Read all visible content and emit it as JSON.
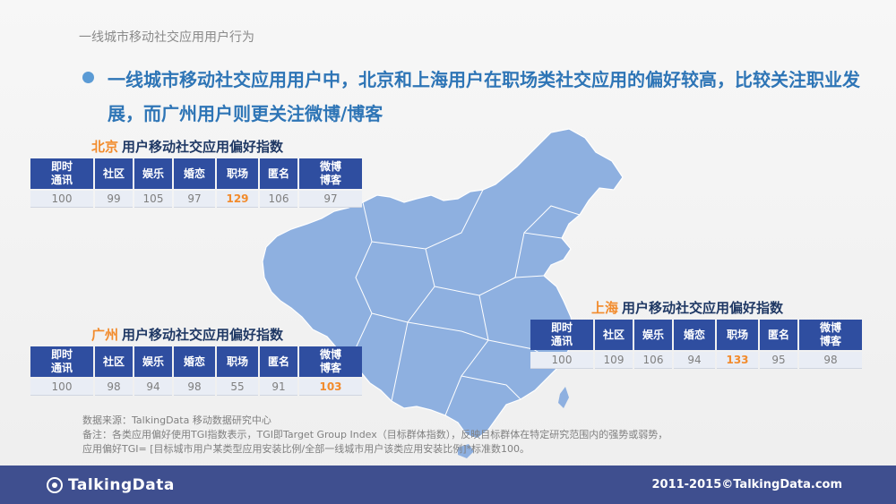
{
  "section_title": "一线城市移动社交应用用户行为",
  "headline": "一线城市移动社交应用用户中，北京和上海用户在职场类社交应用的偏好较高，比较关注职业发展，而广州用户则更关注微博/博客",
  "columns": [
    "即时通讯",
    "社区",
    "娱乐",
    "婚恋",
    "职场",
    "匿名",
    "微博博客"
  ],
  "tables": {
    "beijing": {
      "city": "北京",
      "title": "用户移动社交应用偏好指数",
      "values": [
        "100",
        "99",
        "105",
        "97",
        "129",
        "106",
        "97"
      ],
      "highlight_index": 4
    },
    "guangzhou": {
      "city": "广州",
      "title": "用户移动社交应用偏好指数",
      "values": [
        "100",
        "98",
        "94",
        "98",
        "55",
        "91",
        "103"
      ],
      "highlight_index": 6
    },
    "shanghai": {
      "city": "上海",
      "title": "用户移动社交应用偏好指数",
      "values": [
        "100",
        "109",
        "106",
        "94",
        "133",
        "95",
        "98"
      ],
      "highlight_index": 4
    }
  },
  "notes": {
    "source": "数据来源：TalkingData 移动数据研究中心",
    "remark": "备注：各类应用偏好使用TGI指数表示，TGI即Target Group Index（目标群体指数），反映目标群体在特定研究范围内的强势或弱势，",
    "formula": "应用偏好TGI= [目标城市用户某类型应用安装比例/全部一线城市用户该类应用安装比例]*标准数100。"
  },
  "footer": {
    "logo_text": "TalkingData",
    "copyright": "2011-2015©TalkingData.com"
  },
  "colors": {
    "header_blue": "#2f4ea0",
    "headline_blue": "#2e75b6",
    "highlight_orange": "#f28b2c",
    "map_fill": "#8eb0e0",
    "footer_bg": "#3f4f8f"
  }
}
